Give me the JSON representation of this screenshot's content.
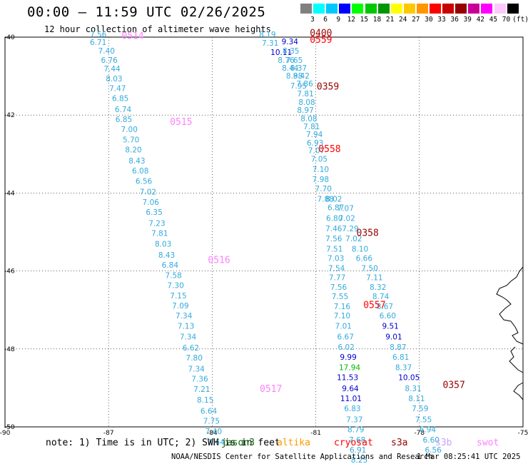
{
  "title": "00:00 – 11:59 UTC 02/26/2025",
  "subtitle": "12 hour collection of altimeter wave heights",
  "colorbar": {
    "unit": "(ft)",
    "colors": [
      "#808080",
      "#00ffff",
      "#00c8ff",
      "#0000ff",
      "#00ff00",
      "#00c800",
      "#009600",
      "#ffff00",
      "#ffc800",
      "#ff9600",
      "#ff0000",
      "#c80000",
      "#960000",
      "#c80096",
      "#ff00ff",
      "#ffc8ff",
      "#000000"
    ],
    "labels": [
      "3",
      "6",
      "9",
      "12",
      "15",
      "18",
      "21",
      "24",
      "27",
      "30",
      "33",
      "36",
      "39",
      "42",
      "45",
      "70"
    ]
  },
  "map": {
    "lon_range": [
      -90,
      -75
    ],
    "lat_range": [
      -50,
      -40
    ],
    "lon_ticks": [
      "-90",
      "-87",
      "-84",
      "-81",
      "-78",
      "-75"
    ],
    "lat_ticks": [
      "-40",
      "-42",
      "-44",
      "-46",
      "-48",
      "-50"
    ]
  },
  "tracks": [
    {
      "labels": [
        {
          "text": "0514",
          "color": "#ff80ff",
          "lat": -40.05,
          "lon": -86.3
        },
        {
          "text": "0515",
          "color": "#ff80ff",
          "lat": -42.25,
          "lon": -84.9
        },
        {
          "text": "0516",
          "color": "#ff80ff",
          "lat": -45.8,
          "lon": -83.8
        },
        {
          "text": "0517",
          "color": "#ff80ff",
          "lat": -49.1,
          "lon": -82.3
        }
      ],
      "points": [
        {
          "lat": -40.0,
          "lon": -87.3,
          "v": "7.56",
          "c": "#33aadd"
        },
        {
          "lat": -40.2,
          "lon": -87.3,
          "v": "6.71",
          "c": "#33aadd"
        },
        {
          "lat": -40.42,
          "lon": -87.06,
          "v": "7.40",
          "c": "#33aadd"
        },
        {
          "lat": -40.66,
          "lon": -86.98,
          "v": "6.76",
          "c": "#33aadd"
        },
        {
          "lat": -40.88,
          "lon": -86.9,
          "v": "7.44",
          "c": "#33aadd"
        },
        {
          "lat": -41.14,
          "lon": -86.84,
          "v": "8.03",
          "c": "#33aadd"
        },
        {
          "lat": -41.38,
          "lon": -86.74,
          "v": "7.47",
          "c": "#33aadd"
        },
        {
          "lat": -41.64,
          "lon": -86.66,
          "v": "6.85",
          "c": "#33aadd"
        },
        {
          "lat": -41.92,
          "lon": -86.58,
          "v": "6.74",
          "c": "#33aadd"
        },
        {
          "lat": -42.18,
          "lon": -86.56,
          "v": "6.85",
          "c": "#33aadd"
        },
        {
          "lat": -42.44,
          "lon": -86.4,
          "v": "7.00",
          "c": "#33aadd"
        },
        {
          "lat": -42.7,
          "lon": -86.35,
          "v": "5.70",
          "c": "#33aadd"
        },
        {
          "lat": -42.96,
          "lon": -86.28,
          "v": "8.20",
          "c": "#33aadd"
        },
        {
          "lat": -43.24,
          "lon": -86.18,
          "v": "8.43",
          "c": "#33aadd"
        },
        {
          "lat": -43.5,
          "lon": -86.08,
          "v": "6.08",
          "c": "#33aadd"
        },
        {
          "lat": -43.76,
          "lon": -85.98,
          "v": "6.56",
          "c": "#33aadd"
        },
        {
          "lat": -44.04,
          "lon": -85.86,
          "v": "7.02",
          "c": "#33aadd"
        },
        {
          "lat": -44.3,
          "lon": -85.78,
          "v": "7.06",
          "c": "#33aadd"
        },
        {
          "lat": -44.56,
          "lon": -85.68,
          "v": "6.35",
          "c": "#33aadd"
        },
        {
          "lat": -44.84,
          "lon": -85.6,
          "v": "7.23",
          "c": "#33aadd"
        },
        {
          "lat": -45.1,
          "lon": -85.52,
          "v": "7.81",
          "c": "#33aadd"
        },
        {
          "lat": -45.38,
          "lon": -85.42,
          "v": "8.03",
          "c": "#33aadd"
        },
        {
          "lat": -45.66,
          "lon": -85.32,
          "v": "8.43",
          "c": "#33aadd"
        },
        {
          "lat": -45.92,
          "lon": -85.22,
          "v": "6.84",
          "c": "#33aadd"
        },
        {
          "lat": -46.18,
          "lon": -85.12,
          "v": "7.58",
          "c": "#33aadd"
        },
        {
          "lat": -46.44,
          "lon": -85.06,
          "v": "7.30",
          "c": "#33aadd"
        },
        {
          "lat": -46.7,
          "lon": -84.98,
          "v": "7.15",
          "c": "#33aadd"
        },
        {
          "lat": -46.96,
          "lon": -84.92,
          "v": "7.09",
          "c": "#33aadd"
        },
        {
          "lat": -47.22,
          "lon": -84.82,
          "v": "7.34",
          "c": "#33aadd"
        },
        {
          "lat": -47.48,
          "lon": -84.76,
          "v": "7.13",
          "c": "#33aadd"
        },
        {
          "lat": -47.76,
          "lon": -84.7,
          "v": "7.34",
          "c": "#33aadd"
        },
        {
          "lat": -48.04,
          "lon": -84.62,
          "v": "6.62",
          "c": "#33aadd"
        },
        {
          "lat": -48.3,
          "lon": -84.52,
          "v": "7.80",
          "c": "#33aadd"
        },
        {
          "lat": -48.58,
          "lon": -84.46,
          "v": "7.34",
          "c": "#33aadd"
        },
        {
          "lat": -48.84,
          "lon": -84.36,
          "v": "7.36",
          "c": "#33aadd"
        },
        {
          "lat": -49.1,
          "lon": -84.3,
          "v": "7.21",
          "c": "#33aadd"
        },
        {
          "lat": -49.38,
          "lon": -84.2,
          "v": "8.15",
          "c": "#33aadd"
        },
        {
          "lat": -49.66,
          "lon": -84.1,
          "v": "6.64",
          "c": "#33aadd"
        },
        {
          "lat": -49.92,
          "lon": -84.02,
          "v": "7.75",
          "c": "#33aadd"
        },
        {
          "lat": -50.18,
          "lon": -83.96,
          "v": "7.40",
          "c": "#33aadd"
        },
        {
          "lat": -50.46,
          "lon": -83.88,
          "v": "7.64",
          "c": "#33aadd"
        }
      ]
    },
    {
      "labels": [
        {
          "text": "0400",
          "color": "#990000",
          "lat": -39.97,
          "lon": -80.85
        },
        {
          "text": "0559",
          "color": "#ff0000",
          "lat": -40.15,
          "lon": -80.85
        },
        {
          "text": "0359",
          "color": "#990000",
          "lat": -41.35,
          "lon": -80.65
        },
        {
          "text": "0558",
          "color": "#ff0000",
          "lat": -42.95,
          "lon": -80.6
        }
      ],
      "points": [
        {
          "lat": -40.0,
          "lon": -82.4,
          "v": "8.19",
          "c": "#33aadd"
        },
        {
          "lat": -40.22,
          "lon": -82.32,
          "v": "7.31",
          "c": "#33aadd"
        },
        {
          "lat": -40.18,
          "lon": -81.75,
          "v": "9.34",
          "c": "#0000cc"
        },
        {
          "lat": -40.46,
          "lon": -82.0,
          "v": "10.11",
          "c": "#0000cc"
        },
        {
          "lat": -40.42,
          "lon": -81.72,
          "v": "8.35",
          "c": "#33aadd"
        },
        {
          "lat": -40.66,
          "lon": -81.86,
          "v": "8.76",
          "c": "#33aadd"
        },
        {
          "lat": -40.66,
          "lon": -81.62,
          "v": "7.65",
          "c": "#33aadd"
        },
        {
          "lat": -40.86,
          "lon": -81.74,
          "v": "8.44",
          "c": "#33aadd"
        },
        {
          "lat": -40.86,
          "lon": -81.5,
          "v": "8.37",
          "c": "#33aadd"
        },
        {
          "lat": -41.06,
          "lon": -81.62,
          "v": "8.98",
          "c": "#33aadd"
        },
        {
          "lat": -41.06,
          "lon": -81.42,
          "v": "8.42",
          "c": "#33aadd"
        },
        {
          "lat": -41.32,
          "lon": -81.5,
          "v": "7.95",
          "c": "#33aadd"
        },
        {
          "lat": -41.26,
          "lon": -81.32,
          "v": "7.86",
          "c": "#33aadd"
        },
        {
          "lat": -41.52,
          "lon": -81.3,
          "v": "7.81",
          "c": "#33aadd"
        },
        {
          "lat": -41.74,
          "lon": -81.26,
          "v": "8.08",
          "c": "#33aadd"
        },
        {
          "lat": -41.94,
          "lon": -81.3,
          "v": "8.97",
          "c": "#33aadd"
        },
        {
          "lat": -42.16,
          "lon": -81.2,
          "v": "8.08",
          "c": "#33aadd"
        },
        {
          "lat": -42.36,
          "lon": -81.12,
          "v": "7.81",
          "c": "#33aadd"
        },
        {
          "lat": -42.56,
          "lon": -81.04,
          "v": "7.94",
          "c": "#33aadd"
        },
        {
          "lat": -42.78,
          "lon": -81.02,
          "v": "6.93",
          "c": "#33aadd"
        },
        {
          "lat": -42.98,
          "lon": -80.98,
          "v": "7.07",
          "c": "#33aadd"
        },
        {
          "lat": -43.2,
          "lon": -80.9,
          "v": "7.05",
          "c": "#33aadd"
        },
        {
          "lat": -43.46,
          "lon": -80.86,
          "v": "7.10",
          "c": "#33aadd"
        },
        {
          "lat": -43.72,
          "lon": -80.86,
          "v": "7.98",
          "c": "#33aadd"
        },
        {
          "lat": -43.96,
          "lon": -80.78,
          "v": "7.70",
          "c": "#33aadd"
        },
        {
          "lat": -44.22,
          "lon": -80.72,
          "v": "7.88",
          "c": "#33aadd"
        },
        {
          "lat": -44.22,
          "lon": -80.48,
          "v": "8.02",
          "c": "#33aadd"
        },
        {
          "lat": -44.44,
          "lon": -80.42,
          "v": "6.87",
          "c": "#33aadd"
        },
        {
          "lat": -44.46,
          "lon": -80.14,
          "v": "7.07",
          "c": "#33aadd"
        },
        {
          "lat": -44.72,
          "lon": -80.46,
          "v": "6.80",
          "c": "#33aadd"
        },
        {
          "lat": -44.72,
          "lon": -80.1,
          "v": "7.02",
          "c": "#33aadd"
        },
        {
          "lat": -44.98,
          "lon": -80.48,
          "v": "7.46",
          "c": "#33aadd"
        },
        {
          "lat": -44.98,
          "lon": -80.0,
          "v": "7.29",
          "c": "#33aadd"
        },
        {
          "lat": -45.24,
          "lon": -80.48,
          "v": "7.56",
          "c": "#33aadd"
        },
        {
          "lat": -45.24,
          "lon": -79.9,
          "v": "7.02",
          "c": "#33aadd"
        },
        {
          "lat": -45.5,
          "lon": -80.46,
          "v": "7.51",
          "c": "#33aadd"
        },
        {
          "lat": -45.5,
          "lon": -79.72,
          "v": "8.10",
          "c": "#33aadd"
        },
        {
          "lat": -45.74,
          "lon": -80.42,
          "v": "7.03",
          "c": "#33aadd"
        },
        {
          "lat": -45.74,
          "lon": -79.6,
          "v": "6.66",
          "c": "#33aadd"
        },
        {
          "lat": -46.0,
          "lon": -80.4,
          "v": "7.54",
          "c": "#33aadd"
        },
        {
          "lat": -46.0,
          "lon": -79.44,
          "v": "7.50",
          "c": "#33aadd"
        },
        {
          "lat": -46.24,
          "lon": -80.38,
          "v": "7.77",
          "c": "#33aadd"
        },
        {
          "lat": -46.24,
          "lon": -79.3,
          "v": "7.11",
          "c": "#33aadd"
        },
        {
          "lat": -46.48,
          "lon": -80.34,
          "v": "7.56",
          "c": "#33aadd"
        },
        {
          "lat": -46.48,
          "lon": -79.2,
          "v": "8.32",
          "c": "#33aadd"
        },
        {
          "lat": -46.72,
          "lon": -80.3,
          "v": "7.55",
          "c": "#33aadd"
        },
        {
          "lat": -46.72,
          "lon": -79.12,
          "v": "8.74",
          "c": "#33aadd"
        },
        {
          "lat": -46.98,
          "lon": -80.24,
          "v": "7.16",
          "c": "#33aadd"
        },
        {
          "lat": -46.98,
          "lon": -79.0,
          "v": "8.67",
          "c": "#33aadd"
        },
        {
          "lat": -47.22,
          "lon": -80.24,
          "v": "7.10",
          "c": "#33aadd"
        },
        {
          "lat": -47.22,
          "lon": -78.92,
          "v": "6.60",
          "c": "#33aadd"
        },
        {
          "lat": -47.48,
          "lon": -80.2,
          "v": "7.01",
          "c": "#33aadd"
        },
        {
          "lat": -47.48,
          "lon": -78.84,
          "v": "9.51",
          "c": "#0000cc"
        },
        {
          "lat": -47.76,
          "lon": -80.14,
          "v": "6.67",
          "c": "#33aadd"
        },
        {
          "lat": -47.76,
          "lon": -78.74,
          "v": "9.01",
          "c": "#0000cc"
        },
        {
          "lat": -48.02,
          "lon": -80.12,
          "v": "6.02",
          "c": "#33aadd"
        },
        {
          "lat": -48.02,
          "lon": -78.62,
          "v": "8.87",
          "c": "#33aadd"
        },
        {
          "lat": -48.28,
          "lon": -80.06,
          "v": "9.99",
          "c": "#0000cc"
        },
        {
          "lat": -48.28,
          "lon": -78.54,
          "v": "6.81",
          "c": "#33aadd"
        },
        {
          "lat": -48.54,
          "lon": -80.02,
          "v": "17.94",
          "c": "#00bb00"
        },
        {
          "lat": -48.54,
          "lon": -78.46,
          "v": "8.37",
          "c": "#33aadd"
        },
        {
          "lat": -48.8,
          "lon": -80.08,
          "v": "11.53",
          "c": "#0000cc"
        },
        {
          "lat": -48.8,
          "lon": -78.3,
          "v": "10.05",
          "c": "#0000cc"
        },
        {
          "lat": -49.08,
          "lon": -80.0,
          "v": "9.64",
          "c": "#0000cc"
        },
        {
          "lat": -49.08,
          "lon": -78.18,
          "v": "8.31",
          "c": "#33aadd"
        },
        {
          "lat": -49.34,
          "lon": -79.98,
          "v": "11.01",
          "c": "#0000cc"
        },
        {
          "lat": -49.34,
          "lon": -78.08,
          "v": "8.11",
          "c": "#33aadd"
        },
        {
          "lat": -49.6,
          "lon": -79.94,
          "v": "6.83",
          "c": "#33aadd"
        },
        {
          "lat": -49.6,
          "lon": -77.98,
          "v": "7.59",
          "c": "#33aadd"
        },
        {
          "lat": -49.88,
          "lon": -79.88,
          "v": "7.37",
          "c": "#33aadd"
        },
        {
          "lat": -49.88,
          "lon": -77.88,
          "v": "7.55",
          "c": "#33aadd"
        },
        {
          "lat": -50.14,
          "lon": -79.84,
          "v": "8.79",
          "c": "#33aadd"
        },
        {
          "lat": -50.14,
          "lon": -77.76,
          "v": "6.94",
          "c": "#33aadd"
        },
        {
          "lat": -50.4,
          "lon": -79.8,
          "v": "7.68",
          "c": "#33aadd"
        },
        {
          "lat": -50.4,
          "lon": -77.66,
          "v": "6.60",
          "c": "#33aadd"
        },
        {
          "lat": -50.66,
          "lon": -79.78,
          "v": "6.91",
          "c": "#33aadd"
        },
        {
          "lat": -50.66,
          "lon": -77.6,
          "v": "6.56",
          "c": "#33aadd"
        },
        {
          "lat": -50.92,
          "lon": -79.74,
          "v": "8.25",
          "c": "#33aadd"
        }
      ]
    },
    {
      "labels": [
        {
          "text": "0358",
          "color": "#990000",
          "lat": -45.1,
          "lon": -79.5
        },
        {
          "text": "0557",
          "color": "#ff0000",
          "lat": -46.95,
          "lon": -79.3
        },
        {
          "text": "0357",
          "color": "#990000",
          "lat": -49.0,
          "lon": -77.0
        }
      ],
      "points": []
    }
  ],
  "coastline": "land-outline",
  "footer": {
    "note": "note: 1) Time is in UTC; 2) SWH is in feet",
    "satellites": [
      {
        "name": "jason3",
        "color": "#006600"
      },
      {
        "name": "altika",
        "color": "#ff9900"
      },
      {
        "name": "cryosat",
        "color": "#ff0000"
      },
      {
        "name": "s3a",
        "color": "#990000"
      },
      {
        "name": "s3b",
        "color": "#c8a0ff"
      },
      {
        "name": "swot",
        "color": "#ff80ff"
      }
    ],
    "credit": "NOAA/NESDIS Center for Satellite Applications and Research",
    "timestamp": "1 Mar 08:25:41 UTC 2025"
  }
}
